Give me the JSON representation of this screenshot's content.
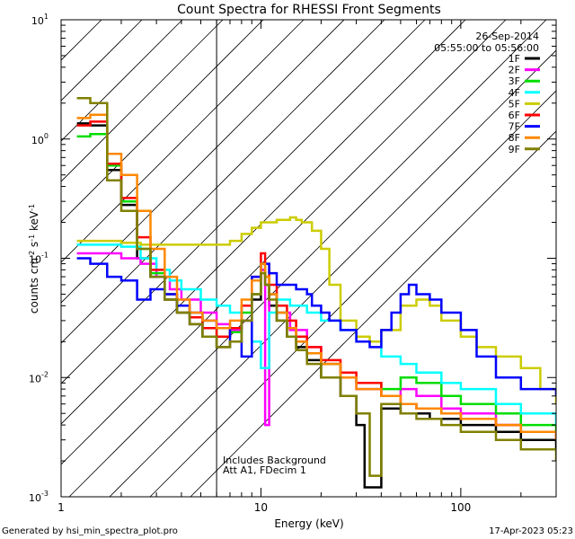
{
  "chart_data": {
    "type": "line",
    "title": "Count Spectra for RHESSI Front Segments",
    "xlabel": "Energy (keV)",
    "ylabel": "counts cm^-2 s^-1 keV^-1",
    "ylabel_parts": {
      "base": "counts cm",
      "e1": "-2",
      "mid": " s",
      "e2": "-1",
      "mid2": " keV",
      "e3": "-1"
    },
    "xscale": "log",
    "yscale": "log",
    "xlim": [
      1,
      300
    ],
    "ylim": [
      0.001,
      10
    ],
    "x_ticks": [
      {
        "value": 1,
        "label": "1"
      },
      {
        "value": 10,
        "label": "10"
      },
      {
        "value": 100,
        "label": "100"
      }
    ],
    "y_ticks": [
      {
        "value": 10,
        "base": "10",
        "exp": "1"
      },
      {
        "value": 1,
        "base": "10",
        "exp": "0"
      },
      {
        "value": 0.1,
        "base": "10",
        "exp": "-1"
      },
      {
        "value": 0.01,
        "base": "10",
        "exp": "-2"
      },
      {
        "value": 0.001,
        "base": "10",
        "exp": "-3"
      }
    ],
    "date": "26-Sep-2014",
    "time_range": "05:55:00 to 05:56:00",
    "excluded_region": {
      "from": 1,
      "to": 6
    },
    "annotations": [
      "Includes Background",
      "Att A1, FDecim 1"
    ],
    "footer_left": "Generated by hsi_min_spectra_plot.pro",
    "footer_right": "17-Apr-2023 05:23",
    "series": [
      {
        "name": "1F",
        "color": "#000000",
        "x": [
          1.2,
          1.4,
          1.7,
          2.0,
          2.4,
          2.8,
          3.3,
          3.8,
          4.4,
          5.1,
          6.0,
          7.0,
          8.0,
          9.0,
          10.0,
          10.5,
          11.0,
          12.0,
          13.5,
          15.0,
          17.0,
          20.0,
          25.0,
          30.0,
          33.0,
          40.0,
          50.0,
          70.0,
          100.0,
          150.0,
          200.0,
          300.0
        ],
        "y": [
          1.35,
          1.3,
          0.55,
          0.28,
          0.1,
          0.07,
          0.045,
          0.035,
          0.028,
          0.022,
          0.018,
          0.02,
          0.03,
          0.045,
          0.08,
          0.06,
          0.04,
          0.03,
          0.022,
          0.018,
          0.014,
          0.01,
          0.007,
          0.004,
          0.0012,
          0.0055,
          0.005,
          0.0045,
          0.004,
          0.0035,
          0.003,
          0.0025
        ]
      },
      {
        "name": "2F",
        "color": "#ff00ff",
        "x": [
          1.2,
          1.5,
          2.0,
          2.5,
          3.0,
          3.5,
          4.0,
          5.0,
          6.0,
          7.0,
          8.0,
          9.0,
          10.0,
          10.5,
          11.0,
          12.0,
          14.0,
          17.0,
          20.0,
          25.0,
          30.0,
          40.0,
          50.0,
          60.0,
          80.0,
          100.0,
          150.0,
          200.0,
          300.0
        ],
        "y": [
          0.11,
          0.11,
          0.1,
          0.09,
          0.07,
          0.055,
          0.045,
          0.035,
          0.028,
          0.025,
          0.03,
          0.05,
          0.08,
          0.004,
          0.05,
          0.035,
          0.025,
          0.018,
          0.013,
          0.01,
          0.008,
          0.007,
          0.008,
          0.007,
          0.0055,
          0.005,
          0.004,
          0.0035,
          0.003
        ]
      },
      {
        "name": "3F",
        "color": "#00dd00",
        "x": [
          1.2,
          1.4,
          1.7,
          2.0,
          2.4,
          2.8,
          3.3,
          3.8,
          4.4,
          5.1,
          6.0,
          7.0,
          8.0,
          9.0,
          10.0,
          10.5,
          11.0,
          12.0,
          13.5,
          15.0,
          17.0,
          20.0,
          25.0,
          30.0,
          40.0,
          50.0,
          60.0,
          80.0,
          100.0,
          150.0,
          200.0,
          300.0
        ],
        "y": [
          1.05,
          1.1,
          0.6,
          0.3,
          0.12,
          0.075,
          0.05,
          0.04,
          0.032,
          0.026,
          0.022,
          0.024,
          0.035,
          0.05,
          0.09,
          0.07,
          0.05,
          0.035,
          0.026,
          0.02,
          0.016,
          0.013,
          0.01,
          0.009,
          0.008,
          0.01,
          0.009,
          0.007,
          0.006,
          0.005,
          0.004,
          0.0035
        ]
      },
      {
        "name": "4F",
        "color": "#00ffff",
        "x": [
          1.2,
          1.5,
          2.0,
          2.5,
          3.0,
          3.5,
          4.0,
          5.0,
          6.0,
          7.0,
          8.0,
          9.0,
          10.0,
          11.0,
          12.0,
          14.0,
          17.0,
          20.0,
          25.0,
          30.0,
          40.0,
          50.0,
          60.0,
          80.0,
          100.0,
          150.0,
          200.0,
          300.0
        ],
        "y": [
          0.13,
          0.13,
          0.125,
          0.1,
          0.08,
          0.065,
          0.055,
          0.045,
          0.04,
          0.035,
          0.04,
          0.02,
          0.012,
          0.035,
          0.045,
          0.04,
          0.035,
          0.03,
          0.025,
          0.02,
          0.015,
          0.013,
          0.011,
          0.009,
          0.008,
          0.006,
          0.005,
          0.004
        ]
      },
      {
        "name": "5F",
        "color": "#cccc00",
        "x": [
          1.2,
          1.5,
          2.0,
          2.5,
          3.0,
          3.5,
          4.0,
          5.0,
          6.0,
          7.0,
          8.0,
          9.0,
          10.0,
          11.0,
          12.0,
          13.0,
          14.0,
          15.0,
          16.0,
          18.0,
          20.0,
          22.0,
          25.0,
          30.0,
          35.0,
          40.0,
          50.0,
          60.0,
          70.0,
          80.0,
          100.0,
          120.0,
          150.0,
          200.0,
          250.0,
          300.0
        ],
        "y": [
          0.14,
          0.14,
          0.135,
          0.13,
          0.13,
          0.13,
          0.13,
          0.13,
          0.13,
          0.14,
          0.16,
          0.18,
          0.2,
          0.2,
          0.21,
          0.21,
          0.22,
          0.21,
          0.2,
          0.17,
          0.12,
          0.06,
          0.03,
          0.022,
          0.02,
          0.025,
          0.04,
          0.045,
          0.04,
          0.03,
          0.022,
          0.018,
          0.015,
          0.012,
          0.008,
          0.006
        ]
      },
      {
        "name": "6F",
        "color": "#ff0000",
        "x": [
          1.2,
          1.4,
          1.7,
          2.0,
          2.4,
          2.8,
          3.3,
          3.8,
          4.4,
          5.1,
          6.0,
          7.0,
          8.0,
          9.0,
          10.0,
          10.5,
          11.0,
          12.0,
          13.5,
          15.0,
          17.0,
          20.0,
          25.0,
          30.0,
          40.0,
          50.0,
          60.0,
          80.0,
          100.0,
          150.0,
          200.0,
          300.0
        ],
        "y": [
          1.3,
          1.4,
          0.62,
          0.32,
          0.15,
          0.08,
          0.05,
          0.04,
          0.032,
          0.026,
          0.022,
          0.026,
          0.04,
          0.07,
          0.11,
          0.09,
          0.06,
          0.04,
          0.03,
          0.022,
          0.018,
          0.014,
          0.011,
          0.009,
          0.007,
          0.006,
          0.0055,
          0.005,
          0.0045,
          0.004,
          0.0035,
          0.003
        ]
      },
      {
        "name": "7F",
        "color": "#0000ff",
        "x": [
          1.2,
          1.4,
          1.7,
          2.0,
          2.4,
          2.8,
          3.3,
          3.8,
          4.4,
          5.1,
          6.0,
          7.0,
          8.0,
          9.0,
          10.0,
          11.0,
          12.0,
          13.5,
          15.0,
          17.0,
          18.0,
          20.0,
          22.0,
          25.0,
          30.0,
          35.0,
          40.0,
          45.0,
          50.0,
          55.0,
          60.0,
          70.0,
          80.0,
          100.0,
          120.0,
          150.0,
          200.0,
          300.0
        ],
        "y": [
          0.1,
          0.09,
          0.07,
          0.065,
          0.045,
          0.055,
          0.05,
          0.04,
          0.035,
          0.03,
          0.026,
          0.02,
          0.015,
          0.07,
          0.09,
          0.075,
          0.06,
          0.06,
          0.055,
          0.05,
          0.04,
          0.035,
          0.03,
          0.025,
          0.02,
          0.018,
          0.025,
          0.035,
          0.05,
          0.06,
          0.05,
          0.045,
          0.035,
          0.025,
          0.015,
          0.01,
          0.008,
          0.007
        ]
      },
      {
        "name": "8F",
        "color": "#ff8800",
        "x": [
          1.2,
          1.4,
          1.7,
          2.0,
          2.4,
          2.8,
          3.3,
          3.8,
          4.4,
          5.1,
          6.0,
          7.0,
          8.0,
          9.0,
          10.0,
          10.5,
          11.0,
          12.0,
          13.5,
          15.0,
          17.0,
          20.0,
          25.0,
          30.0,
          40.0,
          50.0,
          60.0,
          80.0,
          100.0,
          150.0,
          200.0,
          300.0
        ],
        "y": [
          1.5,
          1.6,
          0.75,
          0.5,
          0.25,
          0.12,
          0.07,
          0.045,
          0.035,
          0.03,
          0.026,
          0.03,
          0.045,
          0.065,
          0.09,
          0.07,
          0.05,
          0.035,
          0.026,
          0.02,
          0.016,
          0.013,
          0.01,
          0.008,
          0.007,
          0.006,
          0.0055,
          0.005,
          0.0045,
          0.004,
          0.0035,
          0.003
        ]
      },
      {
        "name": "9F",
        "color": "#808000",
        "x": [
          1.2,
          1.4,
          1.7,
          2.0,
          2.4,
          2.8,
          3.3,
          3.8,
          4.4,
          5.1,
          6.0,
          7.0,
          8.0,
          9.0,
          10.0,
          10.5,
          11.0,
          12.0,
          13.5,
          15.0,
          17.0,
          20.0,
          25.0,
          30.0,
          35.0,
          40.0,
          50.0,
          60.0,
          80.0,
          100.0,
          150.0,
          200.0,
          300.0
        ],
        "y": [
          2.2,
          2.0,
          0.45,
          0.25,
          0.12,
          0.07,
          0.045,
          0.035,
          0.028,
          0.022,
          0.018,
          0.02,
          0.03,
          0.05,
          0.075,
          0.06,
          0.045,
          0.03,
          0.022,
          0.017,
          0.013,
          0.01,
          0.007,
          0.005,
          0.0015,
          0.006,
          0.005,
          0.0045,
          0.004,
          0.0035,
          0.003,
          0.0025,
          0.002
        ]
      }
    ]
  }
}
